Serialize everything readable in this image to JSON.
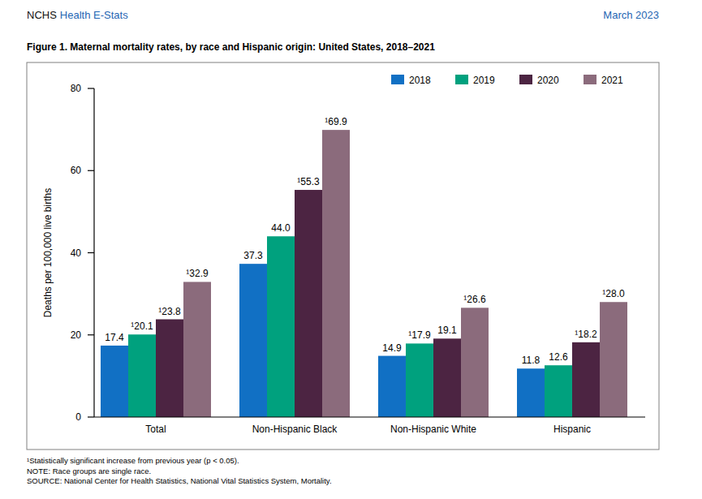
{
  "header": {
    "org": "NCHS",
    "series_name": "Health E-Stats",
    "date": "March 2023"
  },
  "chart_data": {
    "type": "bar",
    "title": "Figure 1. Maternal mortality rates, by race and Hispanic origin: United States, 2018–2021",
    "y_label": "Deaths per 100,000 live births",
    "categories": [
      "Total",
      "Non-Hispanic Black",
      "Non-Hispanic White",
      "Hispanic"
    ],
    "series": [
      {
        "name": "2018",
        "color": "#1170c4",
        "values": [
          17.4,
          37.3,
          14.9,
          11.8
        ],
        "value_labels": [
          "17.4",
          "37.3",
          "14.9",
          "11.8"
        ]
      },
      {
        "name": "2019",
        "color": "#00a17e",
        "values": [
          20.1,
          44.0,
          17.9,
          12.6
        ],
        "value_labels": [
          "¹20.1",
          "44.0",
          "¹17.9",
          "12.6"
        ]
      },
      {
        "name": "2020",
        "color": "#4c2442",
        "values": [
          23.8,
          55.3,
          19.1,
          18.2
        ],
        "value_labels": [
          "¹23.8",
          "¹55.3",
          "19.1",
          "¹18.2"
        ]
      },
      {
        "name": "2021",
        "color": "#8b6b7c",
        "values": [
          32.9,
          69.9,
          26.6,
          28.0
        ],
        "value_labels": [
          "¹32.9",
          "¹69.9",
          "¹26.6",
          "¹28.0"
        ]
      }
    ],
    "ylim": [
      0,
      80
    ],
    "yticks": [
      0,
      20,
      40,
      60,
      80
    ],
    "grid": false,
    "legend": "top-right",
    "data_labels": true
  },
  "footer": [
    "¹Statistically significant increase from previous year (p < 0.05).",
    "NOTE: Race groups are single race.",
    "SOURCE: National Center for Health Statistics, National Vital Statistics System, Mortality."
  ]
}
